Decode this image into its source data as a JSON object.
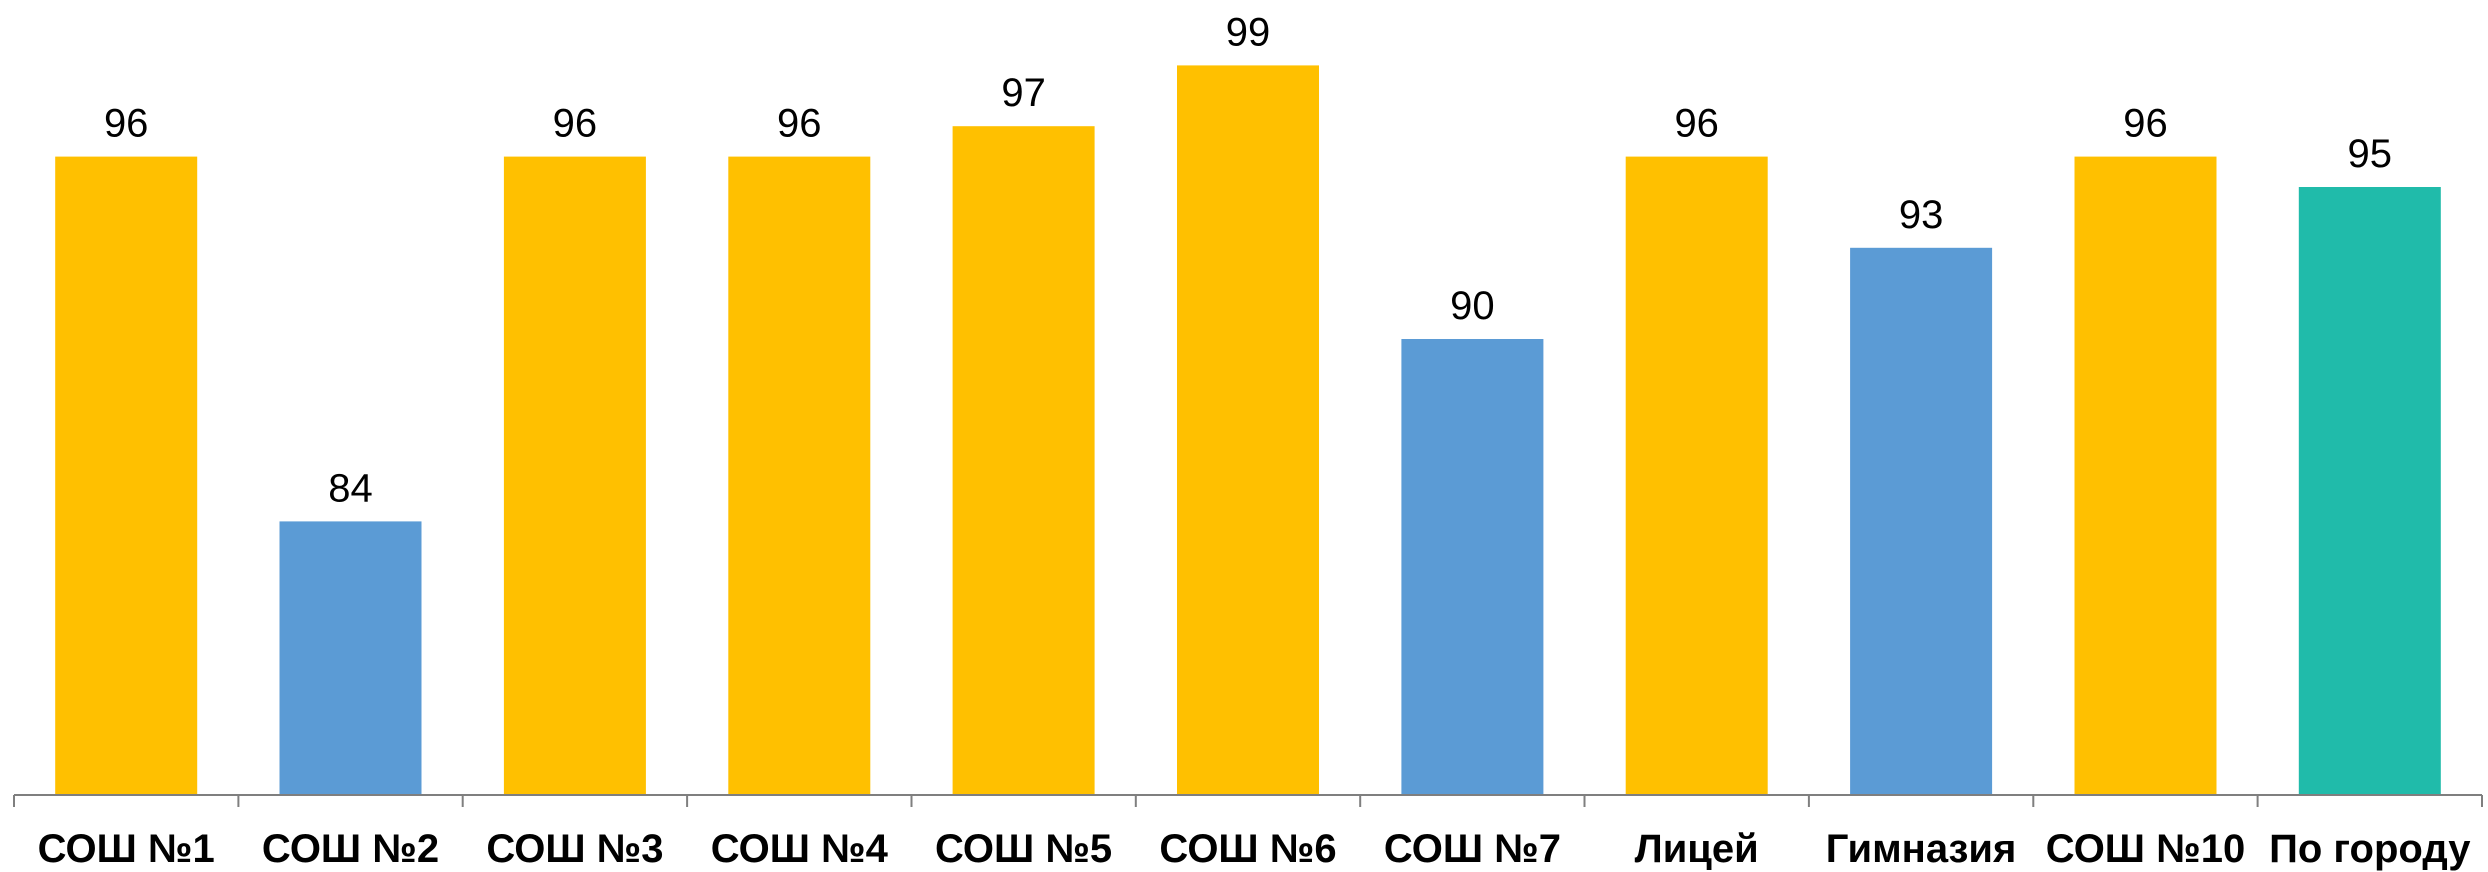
{
  "chart_data": {
    "type": "bar",
    "categories": [
      "СОШ №1",
      "СОШ №2",
      "СОШ №3",
      "СОШ №4",
      "СОШ №5",
      "СОШ №6",
      "СОШ №7",
      "Лицей",
      "Гимназия",
      "СОШ №10",
      "По городу"
    ],
    "values": [
      96,
      84,
      96,
      96,
      97,
      99,
      90,
      96,
      93,
      96,
      95
    ],
    "bar_colors": [
      "#FFC000",
      "#5B9BD5",
      "#FFC000",
      "#FFC000",
      "#FFC000",
      "#FFC000",
      "#5B9BD5",
      "#FFC000",
      "#5B9BD5",
      "#FFC000",
      "#20BBAA"
    ],
    "data_labels": [
      "96",
      "84",
      "96",
      "96",
      "97",
      "99",
      "90",
      "96",
      "93",
      "96",
      "95"
    ],
    "title": "",
    "xlabel": "",
    "ylabel": "",
    "ylim": [
      75,
      100
    ],
    "grid": false,
    "legend": "none"
  }
}
